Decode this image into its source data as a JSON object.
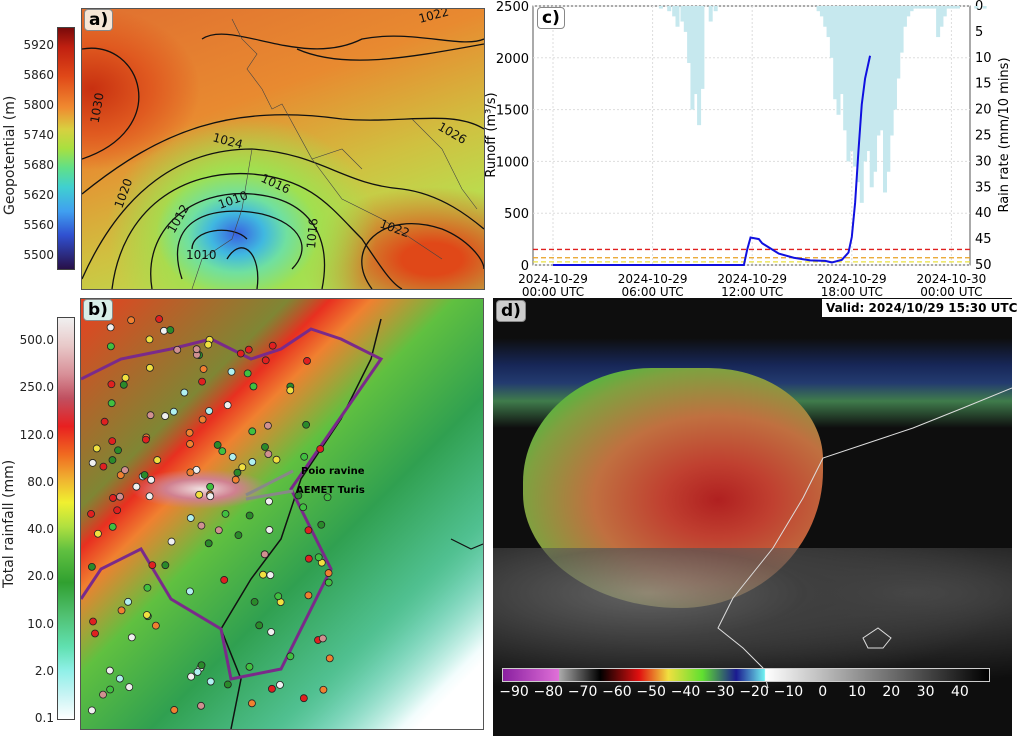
{
  "panel_a": {
    "label": "a)",
    "colorbar_title": "Geopotential (m)",
    "colorbar_ticks": [
      "5920",
      "5860",
      "5800",
      "5740",
      "5680",
      "5620",
      "5560",
      "5500"
    ],
    "isobar_labels": [
      "1030",
      "1024",
      "1026",
      "1020",
      "1016",
      "1012",
      "1010",
      "1010",
      "1016",
      "1022",
      "1022"
    ]
  },
  "panel_b": {
    "label": "b)",
    "colorbar_title": "Total rainfall (mm)",
    "colorbar_ticks": [
      "500.0",
      "250.0",
      "120.0",
      "80.0",
      "40.0",
      "20.0",
      "10.0",
      "2.0",
      "0.1"
    ],
    "annotations": [
      "Poio ravine",
      "AEMET Turis"
    ]
  },
  "panel_d": {
    "label": "d)",
    "valid_time": "Valid: 2024/10/29 15:30 UTC",
    "colorbar_ticks": [
      "−90",
      "−80",
      "−70",
      "−60",
      "−50",
      "−40",
      "−30",
      "−20",
      "−10",
      "0",
      "10",
      "20",
      "30",
      "40"
    ]
  },
  "chart_data": {
    "type": "line",
    "label": "c)",
    "ylabel": "Runoff (m³/s)",
    "y2label": "Rain rate (mm/10 mins)",
    "x_ticks": [
      "2024-10-29\n00:00 UTC",
      "2024-10-29\n06:00 UTC",
      "2024-10-29\n12:00 UTC",
      "2024-10-29\n18:00 UTC",
      "2024-10-30\n00:00 UTC"
    ],
    "y_ticks": [
      0,
      500,
      1000,
      1500,
      2000,
      2500
    ],
    "y2_ticks": [
      0,
      5,
      10,
      15,
      20,
      25,
      30,
      35,
      40,
      45,
      50
    ],
    "ylim": [
      0,
      2500
    ],
    "y2lim": [
      50,
      0
    ],
    "grid": true,
    "runoff": {
      "color": "#1010e0",
      "x_hours": [
        0,
        11.5,
        11.7,
        11.9,
        12.4,
        12.6,
        13.0,
        13.6,
        14.5,
        15.5,
        16.4,
        16.8,
        17.4,
        17.8,
        18.0,
        18.2,
        18.4,
        18.6,
        18.8,
        19.1
      ],
      "y": [
        0,
        0,
        150,
        265,
        250,
        210,
        170,
        110,
        70,
        45,
        40,
        25,
        50,
        120,
        270,
        600,
        1100,
        1550,
        1800,
        2020
      ]
    },
    "thresholds": [
      {
        "value": 150,
        "color": "#e02020"
      },
      {
        "value": 70,
        "color": "#e8a020"
      },
      {
        "value": 30,
        "color": "#e8e040"
      }
    ],
    "rain": {
      "color": "#c6e8ee",
      "x_hours": [
        6.5,
        7.0,
        7.3,
        7.5,
        7.8,
        8.0,
        8.2,
        8.4,
        8.6,
        8.8,
        9.0,
        9.5,
        9.8,
        16.0,
        16.2,
        16.4,
        16.6,
        16.8,
        17.0,
        17.2,
        17.4,
        17.6,
        17.8,
        18.0,
        18.2,
        18.4,
        18.6,
        18.8,
        19.0,
        19.2,
        19.4,
        19.6,
        19.8,
        20.0,
        20.2,
        20.4,
        20.6,
        20.8,
        21.0,
        21.2,
        21.4,
        21.6,
        21.8,
        22.0,
        22.2,
        22.4,
        22.6,
        22.8,
        23.0,
        23.2,
        23.4,
        23.6,
        23.8,
        24.0,
        24.2,
        24.4,
        25.5,
        26.0
      ],
      "y": [
        0.5,
        1,
        2,
        4,
        3,
        5,
        11,
        20,
        17,
        23,
        16,
        3,
        1,
        1,
        2,
        4,
        6,
        10,
        18,
        21,
        17,
        24,
        30,
        28,
        31,
        34,
        38,
        30,
        28,
        35,
        32,
        25,
        24,
        36,
        32,
        25,
        20,
        14,
        9,
        4,
        2,
        1,
        0.5,
        0.5,
        0.5,
        0.5,
        0.5,
        0.5,
        0.5,
        6,
        4,
        2,
        0.5,
        0.5,
        0.5,
        0.5,
        0.5,
        0.5
      ]
    }
  }
}
